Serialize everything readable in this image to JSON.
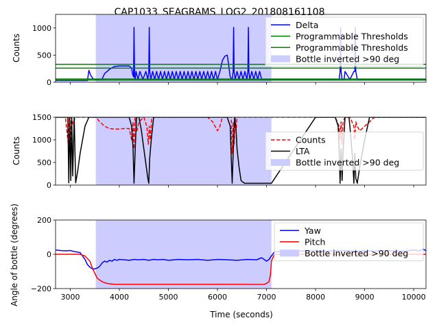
{
  "figure_title": "CAP1033_SEAGRAMS_LOG2_201808161108",
  "shared_xlabel": "Time (seconds)",
  "shaded_span": {
    "x0": 3520,
    "x1": 7100,
    "color": "#ccccff",
    "label": "Bottle inverted >90 deg"
  },
  "chart_data": [
    {
      "type": "line",
      "ylabel": "Counts",
      "xlim": [
        2700,
        10250
      ],
      "ylim": [
        0,
        1250
      ],
      "xticks": [
        3000,
        4000,
        5000,
        6000,
        7000,
        8000,
        9000,
        10000
      ],
      "yticks": [
        0,
        500,
        1000
      ],
      "ytick_labels": [
        "0",
        "500",
        "1000"
      ],
      "show_xtick_labels": false,
      "series": [
        {
          "name": "Delta",
          "color": "#0000ff",
          "style": "solid",
          "x": [
            2700,
            3350,
            3380,
            3420,
            3470,
            3520,
            3650,
            3700,
            3800,
            3900,
            4000,
            4100,
            4200,
            4250,
            4270,
            4290,
            4300,
            4310,
            4320,
            4340,
            4380,
            4420,
            4480,
            4540,
            4580,
            4600,
            4610,
            4620,
            4640,
            4680,
            4720,
            4760,
            4800,
            4840,
            4880,
            4920,
            4960,
            5000,
            5040,
            5080,
            5120,
            5160,
            5200,
            5240,
            5280,
            5320,
            5360,
            5400,
            5440,
            5480,
            5520,
            5560,
            5600,
            5640,
            5680,
            5720,
            5760,
            5800,
            5840,
            5880,
            5920,
            5960,
            6000,
            6050,
            6100,
            6150,
            6200,
            6230,
            6260,
            6300,
            6320,
            6330,
            6340,
            6360,
            6400,
            6440,
            6480,
            6520,
            6560,
            6600,
            6620,
            6630,
            6640,
            6660,
            6700,
            6740,
            6780,
            6820,
            6860,
            6900,
            7000,
            7100,
            7200,
            7300,
            8450,
            8480,
            8500,
            8510,
            8520,
            8540,
            8580,
            8600,
            8700,
            8780,
            8800,
            8810,
            8820,
            8850,
            9000,
            10250
          ],
          "y": [
            30,
            30,
            220,
            120,
            60,
            50,
            60,
            160,
            240,
            290,
            300,
            300,
            300,
            260,
            150,
            100,
            1010,
            100,
            50,
            200,
            50,
            200,
            50,
            200,
            50,
            200,
            1010,
            200,
            50,
            200,
            50,
            200,
            50,
            200,
            50,
            200,
            50,
            200,
            50,
            200,
            50,
            200,
            50,
            200,
            50,
            200,
            50,
            200,
            50,
            200,
            50,
            200,
            50,
            200,
            50,
            200,
            50,
            200,
            50,
            200,
            50,
            200,
            50,
            200,
            400,
            480,
            500,
            300,
            100,
            50,
            200,
            1010,
            200,
            50,
            200,
            50,
            200,
            50,
            200,
            50,
            200,
            1010,
            200,
            50,
            200,
            50,
            200,
            50,
            200,
            50,
            40,
            40,
            40,
            40,
            40,
            40,
            200,
            1010,
            200,
            50,
            50,
            200,
            50,
            200,
            200,
            1010,
            200,
            50,
            40,
            40
          ]
        },
        {
          "name": "Programmable Thresholds",
          "color": "#008000",
          "style": "hline",
          "y": 330
        },
        {
          "name": "Programmable Thresholds",
          "color": "#008000",
          "style": "hline",
          "y": 260
        },
        {
          "name": "",
          "color": "#008000",
          "style": "hline",
          "y": 60
        },
        {
          "name": "",
          "color": "#008000",
          "style": "hline",
          "y": 40
        }
      ],
      "legend": [
        "Delta",
        "Programmable Thresholds",
        "Programmable Thresholds",
        "Bottle inverted >90 deg"
      ],
      "legend_loc": "upper-right"
    },
    {
      "type": "line",
      "ylabel": "Counts",
      "xlim": [
        2700,
        10250
      ],
      "ylim": [
        0,
        1500
      ],
      "xticks": [
        3000,
        4000,
        5000,
        6000,
        7000,
        8000,
        9000,
        10000
      ],
      "yticks": [
        0,
        500,
        1000,
        1500
      ],
      "ytick_labels": [
        "0",
        "500",
        "1000",
        "1500"
      ],
      "show_xtick_labels": false,
      "series": [
        {
          "name": "Counts",
          "color": "#ff0000",
          "style": "dashed",
          "x": [
            2700,
            2900,
            2960,
            2980,
            3000,
            3020,
            3060,
            3100,
            3300,
            3400,
            3520,
            3600,
            3700,
            3800,
            3900,
            4000,
            4100,
            4200,
            4250,
            4280,
            4300,
            4320,
            4360,
            4400,
            4500,
            4560,
            4590,
            4610,
            4630,
            4660,
            4700,
            4800,
            5000,
            5500,
            5800,
            5900,
            5950,
            6000,
            6050,
            6100,
            6200,
            6280,
            6300,
            6320,
            6340,
            6360,
            6380,
            6400,
            6500,
            7000,
            7100,
            7300,
            8000,
            8400,
            8480,
            8500,
            8520,
            8540,
            8560,
            8600,
            8700,
            8780,
            8800,
            8820,
            8850,
            8900,
            9000,
            9200,
            9500,
            10250
          ],
          "y": [
            1500,
            1500,
            900,
            1500,
            800,
            1500,
            1350,
            1500,
            1500,
            1500,
            1500,
            1400,
            1300,
            1250,
            1240,
            1240,
            1250,
            1250,
            1000,
            1400,
            800,
            1500,
            1200,
            1400,
            1500,
            1300,
            900,
            1300,
            1000,
            1500,
            1500,
            1500,
            1500,
            1500,
            1500,
            1400,
            1300,
            1200,
            1300,
            1500,
            1500,
            1500,
            700,
            1400,
            900,
            1500,
            1200,
            1500,
            1500,
            1500,
            1500,
            1500,
            1500,
            1500,
            1300,
            1000,
            1400,
            900,
            1400,
            1500,
            1500,
            1300,
            1000,
            1400,
            1300,
            1200,
            1300,
            1500,
            1500,
            1500
          ]
        },
        {
          "name": "LTA",
          "color": "#000000",
          "style": "solid",
          "x": [
            2700,
            2900,
            2950,
            2970,
            2990,
            3010,
            3030,
            3050,
            3080,
            3110,
            3150,
            3200,
            3300,
            3380,
            3400,
            4000,
            4200,
            4250,
            4280,
            4300,
            4320,
            4350,
            4400,
            4450,
            4500,
            4550,
            4580,
            4600,
            4620,
            4650,
            4700,
            4750,
            4800,
            4850,
            4900,
            5000,
            5100,
            5200,
            5300,
            6000,
            6200,
            6260,
            6280,
            6300,
            6320,
            6350,
            6380,
            6400,
            6440,
            6480,
            6550,
            6600,
            6650,
            6700,
            6800,
            6900,
            7000,
            7050,
            7100,
            8000,
            8400,
            8460,
            8480,
            8500,
            8520,
            8540,
            8560,
            8600,
            8680,
            8700,
            8760,
            8780,
            8800,
            8820,
            8850,
            8900,
            8950,
            9000,
            9100,
            9500,
            10250
          ],
          "y": [
            1500,
            1500,
            1500,
            50,
            1500,
            100,
            1500,
            200,
            1500,
            50,
            300,
            700,
            1300,
            1500,
            1500,
            1500,
            1500,
            1300,
            800,
            40,
            700,
            1500,
            1500,
            1200,
            800,
            400,
            150,
            40,
            600,
            1000,
            1500,
            1500,
            1500,
            1500,
            1500,
            1500,
            1500,
            1500,
            1500,
            1500,
            1500,
            1300,
            600,
            40,
            700,
            1500,
            1200,
            800,
            400,
            100,
            40,
            40,
            40,
            40,
            40,
            40,
            40,
            40,
            40,
            1500,
            1500,
            1300,
            800,
            40,
            800,
            100,
            700,
            1500,
            1500,
            1300,
            500,
            40,
            700,
            150,
            40,
            400,
            700,
            1000,
            1500,
            1500,
            1500
          ]
        }
      ],
      "legend": [
        "Counts",
        "LTA",
        "Bottle inverted >90 deg"
      ],
      "legend_loc": "center-right"
    },
    {
      "type": "line",
      "ylabel": "Angle of bottle (degrees)",
      "xlabel": "Time (seconds)",
      "xlim": [
        2700,
        10250
      ],
      "ylim": [
        -200,
        200
      ],
      "xticks": [
        3000,
        4000,
        5000,
        6000,
        7000,
        8000,
        9000,
        10000
      ],
      "xtick_labels": [
        "3000",
        "4000",
        "5000",
        "6000",
        "7000",
        "8000",
        "9000",
        "10000"
      ],
      "yticks": [
        -200,
        0,
        200
      ],
      "ytick_labels": [
        "−200",
        "0",
        "200"
      ],
      "show_xtick_labels": true,
      "series": [
        {
          "name": "Yaw",
          "color": "#0000ff",
          "style": "solid",
          "x": [
            2700,
            2800,
            2900,
            3000,
            3100,
            3200,
            3250,
            3300,
            3350,
            3400,
            3450,
            3500,
            3550,
            3600,
            3650,
            3700,
            3750,
            3800,
            3850,
            3900,
            3950,
            4000,
            4100,
            4200,
            4300,
            4400,
            4500,
            4600,
            4700,
            4800,
            4900,
            5000,
            5200,
            5400,
            5600,
            5800,
            6000,
            6200,
            6400,
            6600,
            6800,
            6900,
            6950,
            7000,
            7050,
            7100,
            7150,
            7200,
            7300,
            7400,
            7600,
            7800,
            8000,
            8200,
            8400,
            8600,
            8800,
            9000,
            9200,
            9400,
            9600,
            9800,
            10000,
            10100,
            10200,
            10250
          ],
          "y": [
            25,
            22,
            20,
            22,
            15,
            10,
            -10,
            -30,
            -60,
            -75,
            -85,
            -85,
            -80,
            -70,
            -50,
            -40,
            -45,
            -35,
            -40,
            -30,
            -35,
            -30,
            -32,
            -35,
            -30,
            -32,
            -30,
            -35,
            -30,
            -32,
            -30,
            -35,
            -30,
            -32,
            -30,
            -35,
            -30,
            -32,
            -35,
            -30,
            -32,
            -20,
            -30,
            -40,
            -30,
            -10,
            10,
            15,
            18,
            20,
            18,
            20,
            22,
            18,
            20,
            22,
            18,
            20,
            18,
            22,
            20,
            18,
            25,
            20,
            30,
            20
          ]
        },
        {
          "name": "Pitch",
          "color": "#ff0000",
          "style": "solid",
          "x": [
            2700,
            3000,
            3200,
            3300,
            3400,
            3450,
            3500,
            3550,
            3600,
            3650,
            3700,
            3750,
            3800,
            3900,
            4000,
            4500,
            5000,
            5500,
            6000,
            6500,
            6800,
            6950,
            7000,
            7050,
            7080,
            7100,
            7150,
            7200,
            7500,
            8000,
            9000,
            10250
          ],
          "y": [
            0,
            0,
            0,
            -10,
            -40,
            -80,
            -110,
            -140,
            -150,
            -160,
            -165,
            -170,
            -172,
            -175,
            -175,
            -175,
            -175,
            -175,
            -175,
            -175,
            -176,
            -175,
            -170,
            -160,
            -120,
            -40,
            -5,
            0,
            0,
            0,
            0,
            0
          ]
        }
      ],
      "legend": [
        "Yaw",
        "Pitch",
        "Bottle inverted >90 deg"
      ],
      "legend_loc": "upper-right"
    }
  ]
}
